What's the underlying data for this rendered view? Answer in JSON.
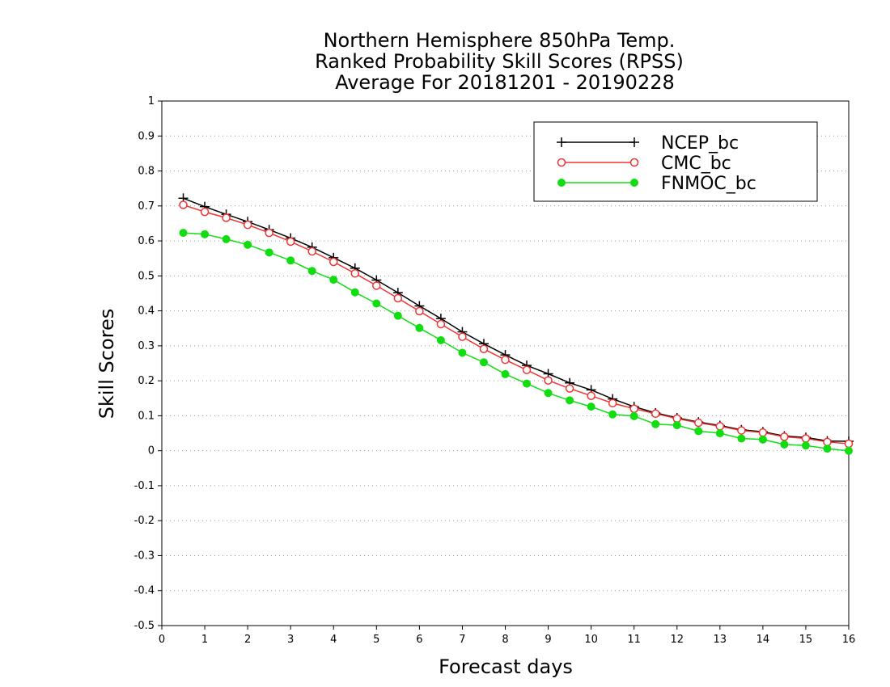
{
  "chart_data": {
    "type": "line",
    "title": [
      "Northern Hemisphere 850hPa Temp.",
      "Ranked Probability Skill Scores (RPSS)",
      "Average For 20181201 - 20190228"
    ],
    "xlabel": "Forecast days",
    "ylabel": "Skill Scores",
    "xlim": [
      0,
      16
    ],
    "ylim": [
      -0.5,
      1
    ],
    "xticks": [
      "0",
      "1",
      "2",
      "3",
      "4",
      "5",
      "6",
      "7",
      "8",
      "9",
      "10",
      "11",
      "12",
      "13",
      "14",
      "15",
      "16"
    ],
    "yticks": [
      "-0.5",
      "-0.4",
      "-0.3",
      "-0.2",
      "-0.1",
      "0",
      "0.1",
      "0.2",
      "0.3",
      "0.4",
      "0.5",
      "0.6",
      "0.7",
      "0.8",
      "0.9",
      "1"
    ],
    "grid": "horizontal dotted",
    "legend_position": "top-right",
    "x": [
      0.5,
      1,
      1.5,
      2,
      2.5,
      3,
      3.5,
      4,
      4.5,
      5,
      5.5,
      6,
      6.5,
      7,
      7.5,
      8,
      8.5,
      9,
      9.5,
      10,
      10.5,
      11,
      11.5,
      12,
      12.5,
      13,
      13.5,
      14,
      14.5,
      15,
      15.5,
      16
    ],
    "series": [
      {
        "name": "NCEP_bc",
        "color": "#000000",
        "marker": "plus",
        "values": [
          0.722,
          0.698,
          0.676,
          0.655,
          0.632,
          0.608,
          0.582,
          0.552,
          0.522,
          0.488,
          0.452,
          0.414,
          0.378,
          0.34,
          0.306,
          0.274,
          0.244,
          0.22,
          0.194,
          0.174,
          0.148,
          0.126,
          0.108,
          0.094,
          0.082,
          0.072,
          0.06,
          0.054,
          0.042,
          0.038,
          0.028,
          0.027
        ]
      },
      {
        "name": "CMC_bc",
        "color": "#ee3333",
        "marker": "open-circle",
        "values": [
          0.703,
          0.683,
          0.666,
          0.646,
          0.623,
          0.598,
          0.57,
          0.54,
          0.507,
          0.472,
          0.436,
          0.399,
          0.362,
          0.326,
          0.291,
          0.26,
          0.231,
          0.201,
          0.178,
          0.157,
          0.136,
          0.12,
          0.106,
          0.092,
          0.08,
          0.07,
          0.058,
          0.052,
          0.04,
          0.035,
          0.025,
          0.02
        ]
      },
      {
        "name": "FNMOC_bc",
        "color": "#11dd11",
        "marker": "filled-circle",
        "values": [
          0.623,
          0.619,
          0.605,
          0.589,
          0.567,
          0.544,
          0.514,
          0.489,
          0.453,
          0.421,
          0.386,
          0.351,
          0.316,
          0.28,
          0.253,
          0.219,
          0.192,
          0.165,
          0.144,
          0.126,
          0.104,
          0.099,
          0.076,
          0.073,
          0.056,
          0.05,
          0.035,
          0.032,
          0.018,
          0.015,
          0.006,
          0.0
        ]
      }
    ]
  }
}
